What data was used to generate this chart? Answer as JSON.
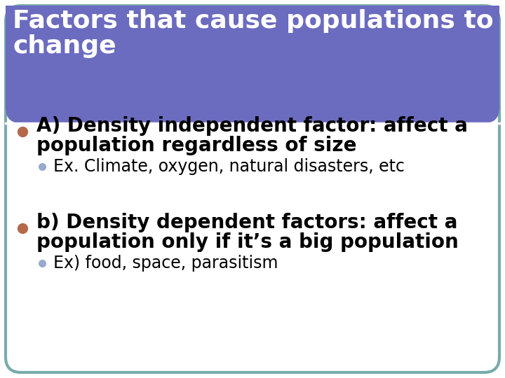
{
  "title_line1": "Factors that cause populations to",
  "title_line2": "change",
  "title_bg_color": "#6B6BBF",
  "title_text_color": "#ffffff",
  "border_color": "#7aabab",
  "background_color": "#ffffff",
  "slide_bg_color": "#ffffff",
  "bullet1_dot_color": "#b5694a",
  "bullet1_text_line1": "A) Density independent factor: affect a",
  "bullet1_text_line2": "population regardless of size",
  "sub_bullet1_dot_color": "#99aacc",
  "sub_bullet1_text": "Ex. Climate, oxygen, natural disasters, etc",
  "bullet2_dot_color": "#b5694a",
  "bullet2_text_line1": "b) Density dependent factors: affect a",
  "bullet2_text_line2": "population only if it’s a big population",
  "sub_bullet2_dot_color": "#99aacc",
  "sub_bullet2_text": "Ex) food, space, parasitism",
  "main_bullet_fontsize": 20,
  "sub_bullet_fontsize": 17,
  "title_fontsize": 26
}
